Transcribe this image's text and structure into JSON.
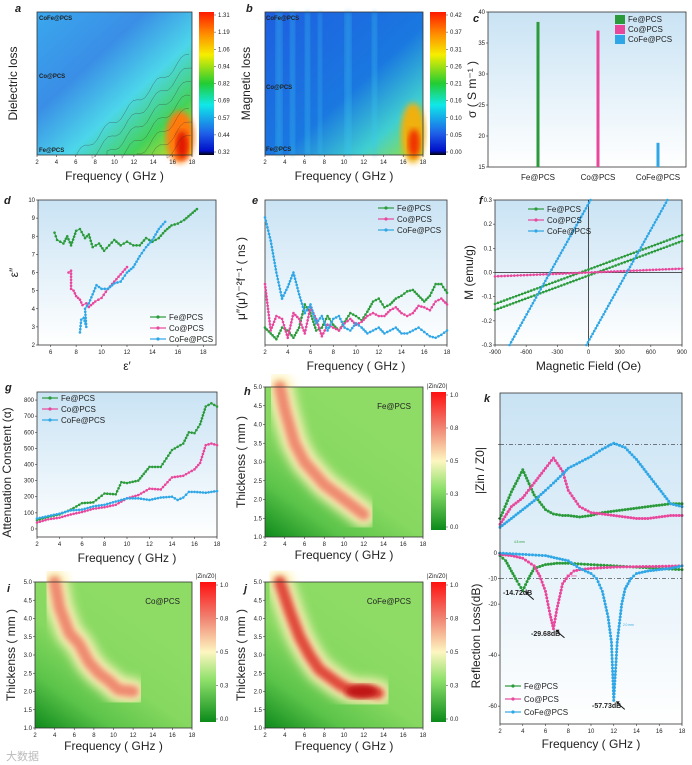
{
  "series_colors": {
    "Fe@PCS": "#2a9a3a",
    "Co@PCS": "#e8479c",
    "CoFe@PCS": "#2fa6e6"
  },
  "watermark": "大数据",
  "chart_data": [
    {
      "id": "a",
      "label": "a",
      "type": "heatmap",
      "xlabel": "Frequency ( GHz )",
      "ylabel": "Dielectric loss",
      "xlim": [
        2,
        18
      ],
      "xticks": [
        2,
        4,
        6,
        8,
        10,
        12,
        14,
        16,
        18
      ],
      "row_labels": [
        "CoFe@PCS",
        "Co@PCS",
        "Fe@PCS"
      ],
      "colorbar_ticks": [
        "1.31",
        "1.19",
        "1.06",
        "0.94",
        "0.82",
        "0.69",
        "0.57",
        "0.44",
        "0.32"
      ]
    },
    {
      "id": "b",
      "label": "b",
      "type": "heatmap",
      "xlabel": "Frequency ( GHz )",
      "ylabel": "Magnetic loss",
      "xlim": [
        2,
        18
      ],
      "xticks": [
        2,
        4,
        6,
        8,
        10,
        12,
        14,
        16,
        18
      ],
      "row_labels": [
        "CoFe@PCS",
        "Co@PCS",
        "Fe@PCS"
      ],
      "colorbar_ticks": [
        "0.42",
        "0.37",
        "0.31",
        "0.26",
        "0.21",
        "0.16",
        "0.10",
        "0.05",
        "0.00"
      ]
    },
    {
      "id": "c",
      "label": "c",
      "type": "bar",
      "ylabel": "σ ( S m⁻¹ )",
      "ylim": [
        15,
        40
      ],
      "yticks": [
        15,
        20,
        25,
        30,
        35,
        40
      ],
      "categories": [
        "Fe@PCS",
        "Co@PCS",
        "CoFe@PCS"
      ],
      "values": [
        38.4,
        37.0,
        18.9
      ],
      "legend": "top-right"
    },
    {
      "id": "d",
      "label": "d",
      "type": "line",
      "xlabel": "ε′",
      "ylabel": "ε″",
      "xlim": [
        5,
        19
      ],
      "ylim": [
        2,
        10
      ],
      "xticks": [
        6,
        8,
        10,
        12,
        14,
        16,
        18
      ],
      "yticks": [
        2,
        3,
        4,
        5,
        6,
        7,
        8,
        9,
        10
      ],
      "legend": "bottom-right",
      "series": [
        {
          "name": "Fe@PCS",
          "x": [
            6.3,
            6.5,
            7,
            7.3,
            7.6,
            8,
            8.3,
            8.7,
            9,
            9.3,
            9.8,
            10.2,
            10.6,
            11,
            11.5,
            12,
            12.5,
            13,
            13.5,
            14,
            14.5,
            15,
            15.5,
            16,
            16.5,
            17,
            17.5
          ],
          "y": [
            8.2,
            7.8,
            7.6,
            8.0,
            7.5,
            8.3,
            8.4,
            7.9,
            8.1,
            7.4,
            7.6,
            7.2,
            7.5,
            7.8,
            7.5,
            7.7,
            7.5,
            7.5,
            7.9,
            7.7,
            7.9,
            8.3,
            8.6,
            8.7,
            8.9,
            9.2,
            9.5
          ]
        },
        {
          "name": "Co@PCS",
          "x": [
            7.4,
            7.6,
            7.6,
            7.8,
            8.0,
            8.3,
            8.5,
            8.8,
            9.0,
            9.5,
            10,
            10.5,
            11,
            11.5,
            12
          ],
          "y": [
            6.0,
            6.1,
            5.1,
            5.0,
            4.7,
            4.5,
            4.2,
            4.3,
            4.1,
            4.4,
            4.6,
            5.1,
            5.5,
            5.9,
            6.3
          ]
        },
        {
          "name": "CoFe@PCS",
          "x": [
            8.3,
            8.4,
            8.6,
            8.8,
            8.7,
            9.0,
            9.3,
            9.6,
            10,
            10.5,
            11,
            11.5,
            12,
            12.5,
            13,
            13.5,
            14,
            14.5,
            15
          ],
          "y": [
            2.7,
            3.4,
            3.5,
            3.0,
            4.0,
            4.3,
            4.8,
            5.3,
            5.1,
            5.1,
            5.4,
            5.5,
            6.0,
            6.3,
            6.9,
            7.4,
            7.8,
            8.4,
            8.8
          ]
        }
      ]
    },
    {
      "id": "e",
      "label": "e",
      "type": "line",
      "xlabel": "Frequency ( GHz )",
      "ylabel": "μ″(μ′)⁻²f⁻¹ ( ns )",
      "xlim": [
        2,
        18
      ],
      "ylim": [
        0,
        1
      ],
      "xticks": [
        2,
        4,
        6,
        8,
        10,
        12,
        14,
        16,
        18
      ],
      "legend": "top-right",
      "x": [
        2,
        2.5,
        3,
        3.5,
        4,
        4.5,
        5,
        5.5,
        6,
        6.5,
        7,
        7.5,
        8,
        8.5,
        9,
        9.5,
        10,
        10.5,
        11,
        11.5,
        12,
        12.5,
        13,
        13.5,
        14,
        14.5,
        15,
        15.5,
        16,
        16.5,
        17,
        17.5,
        18
      ],
      "series": [
        {
          "name": "Fe@PCS",
          "y": [
            0.12,
            0.08,
            0.04,
            0.12,
            0.1,
            0.05,
            0.12,
            0.28,
            0.22,
            0.1,
            0.12,
            0.2,
            0.14,
            0.1,
            0.16,
            0.22,
            0.2,
            0.17,
            0.23,
            0.3,
            0.32,
            0.26,
            0.28,
            0.32,
            0.34,
            0.37,
            0.38,
            0.34,
            0.3,
            0.34,
            0.42,
            0.42,
            0.36
          ]
        },
        {
          "name": "Co@PCS",
          "y": [
            0.42,
            0.1,
            0.2,
            0.18,
            0.05,
            0.22,
            0.18,
            0.08,
            0.26,
            0.18,
            0.06,
            0.14,
            0.12,
            0.1,
            0.15,
            0.18,
            0.14,
            0.16,
            0.2,
            0.22,
            0.2,
            0.2,
            0.24,
            0.26,
            0.22,
            0.2,
            0.22,
            0.27,
            0.26,
            0.24,
            0.3,
            0.32,
            0.28
          ]
        },
        {
          "name": "CoFe@PCS",
          "y": [
            0.88,
            0.72,
            0.5,
            0.32,
            0.4,
            0.5,
            0.35,
            0.22,
            0.28,
            0.15,
            0.2,
            0.1,
            0.18,
            0.2,
            0.12,
            0.1,
            0.15,
            0.12,
            0.08,
            0.1,
            0.12,
            0.08,
            0.1,
            0.12,
            0.08,
            0.08,
            0.1,
            0.12,
            0.09,
            0.06,
            0.05,
            0.07,
            0.1
          ]
        }
      ]
    },
    {
      "id": "f",
      "label": "f",
      "type": "line",
      "xlabel": "Magnetic Field (Oe)",
      "ylabel": "M (emu/g)",
      "xlim": [
        -900,
        900
      ],
      "ylim": [
        -0.3,
        0.3
      ],
      "xticks": [
        -900,
        -600,
        -300,
        0,
        300,
        600,
        900
      ],
      "yticks": [
        "-0.3",
        "-0.2",
        "-0.1",
        "0.0",
        "0.1",
        "0.2",
        "0.3"
      ],
      "legend": "top-left",
      "series": [
        {
          "name": "Fe@PCS",
          "branches": [
            {
              "x": [
                -900,
                900
              ],
              "y": [
                -0.13,
                0.155
              ]
            },
            {
              "x": [
                -900,
                900
              ],
              "y": [
                -0.155,
                0.13
              ]
            }
          ]
        },
        {
          "name": "Co@PCS",
          "branches": [
            {
              "x": [
                -900,
                900
              ],
              "y": [
                -0.016,
                0.016
              ]
            }
          ]
        },
        {
          "name": "CoFe@PCS",
          "branches": [
            {
              "x": [
                -760,
                20
              ],
              "y": [
                -0.3,
                0.3
              ]
            },
            {
              "x": [
                -20,
                760
              ],
              "y": [
                -0.3,
                0.3
              ]
            }
          ]
        }
      ]
    },
    {
      "id": "g",
      "label": "g",
      "type": "line",
      "xlabel": "Frequency ( GHz )",
      "ylabel": "Attenuation Constent (α)",
      "xlim": [
        2,
        18
      ],
      "ylim": [
        -50,
        850
      ],
      "xticks": [
        2,
        4,
        6,
        8,
        10,
        12,
        14,
        16,
        18
      ],
      "yticks": [
        0,
        100,
        200,
        300,
        400,
        500,
        600,
        700,
        800
      ],
      "legend": "top-left",
      "series": [
        {
          "name": "Fe@PCS",
          "x": [
            2,
            3,
            4,
            5,
            6,
            7,
            8,
            9,
            9.5,
            10,
            11,
            12,
            13,
            14,
            15,
            15.5,
            16,
            16.5,
            17,
            17.5,
            18
          ],
          "y": [
            55,
            75,
            90,
            120,
            160,
            165,
            220,
            215,
            290,
            285,
            300,
            385,
            385,
            490,
            530,
            600,
            595,
            650,
            760,
            780,
            760
          ]
        },
        {
          "name": "Co@PCS",
          "x": [
            2,
            3,
            4,
            5,
            6,
            7,
            8,
            9,
            10,
            11,
            12,
            13,
            14,
            15,
            16,
            16.5,
            17,
            17.5,
            18
          ],
          "y": [
            40,
            60,
            70,
            90,
            105,
            125,
            135,
            150,
            190,
            210,
            250,
            245,
            320,
            330,
            370,
            410,
            520,
            530,
            520
          ]
        },
        {
          "name": "CoFe@PCS",
          "x": [
            2,
            3,
            4,
            5,
            6,
            7,
            8,
            9,
            10,
            11,
            12,
            13,
            14,
            14.5,
            15,
            15.5,
            16,
            17,
            18
          ],
          "y": [
            65,
            80,
            95,
            115,
            120,
            140,
            150,
            170,
            190,
            190,
            180,
            195,
            200,
            180,
            195,
            230,
            230,
            225,
            235
          ]
        }
      ]
    },
    {
      "id": "h",
      "label": "h",
      "type": "heatmap",
      "sample": "Fe@PCS",
      "xlabel": "Frequency ( GHz )",
      "ylabel": "Thickenss ( mm )",
      "xlim": [
        2,
        18
      ],
      "ylim": [
        1,
        5
      ],
      "xticks": [
        2,
        4,
        6,
        8,
        10,
        12,
        14,
        16,
        18
      ],
      "yticks": [
        "1.0",
        "1.5",
        "2.0",
        "2.5",
        "3.0",
        "3.5",
        "4.0",
        "4.5",
        "5.0"
      ],
      "colorbar_title": "|Zin/Z0|",
      "colorbar_ticks": [
        "1.0",
        "0.8",
        "0.5",
        "0.3",
        "0.0"
      ],
      "ridge": {
        "x": [
          3.5,
          4,
          5,
          6,
          7,
          8,
          9,
          10,
          11,
          12
        ],
        "y": [
          5,
          4.4,
          3.5,
          3.0,
          2.7,
          2.4,
          2.2,
          2.0,
          1.8,
          1.6
        ]
      }
    },
    {
      "id": "i",
      "label": "i",
      "type": "heatmap",
      "sample": "Co@PCS",
      "xlabel": "Frequency ( GHz )",
      "ylabel": "Thickenss ( mm )",
      "xlim": [
        2,
        18
      ],
      "ylim": [
        1,
        5
      ],
      "xticks": [
        2,
        4,
        6,
        8,
        10,
        12,
        14,
        16,
        18
      ],
      "yticks": [
        "1.0",
        "1.5",
        "2.0",
        "2.5",
        "3.0",
        "3.5",
        "4.0",
        "4.5",
        "5.0"
      ],
      "colorbar_title": "|Zin/Z0|",
      "colorbar_ticks": [
        "1.0",
        "0.8",
        "0.5",
        "0.3",
        "0.0"
      ],
      "ridge": {
        "x": [
          4,
          4.5,
          5.5,
          6.5,
          7.5,
          8.5,
          9.5,
          10.5,
          12
        ],
        "y": [
          5,
          4.3,
          3.6,
          3.3,
          2.8,
          2.5,
          2.3,
          2.05,
          2.0
        ]
      }
    },
    {
      "id": "j",
      "label": "j",
      "type": "heatmap",
      "sample": "CoFe@PCS",
      "xlabel": "Frequency ( GHz )",
      "ylabel": "Thickenss ( mm )",
      "xlim": [
        2,
        18
      ],
      "ylim": [
        1,
        5
      ],
      "xticks": [
        2,
        4,
        6,
        8,
        10,
        12,
        14,
        16,
        18
      ],
      "yticks": [
        "1.0",
        "1.5",
        "2.0",
        "2.5",
        "3.0",
        "3.5",
        "4.0",
        "4.5",
        "5.0"
      ],
      "colorbar_title": "|Zin/Z0|",
      "colorbar_ticks": [
        "1.0",
        "0.8",
        "0.5",
        "0.3",
        "0.0"
      ],
      "ridge": {
        "x": [
          3.5,
          4.5,
          5.5,
          6.5,
          7.5,
          8.5,
          9.5,
          10.5,
          11.5,
          12.5,
          13.5
        ],
        "y": [
          5,
          4.2,
          3.5,
          3.0,
          2.6,
          2.4,
          2.2,
          2.05,
          2.0,
          2.0,
          1.95
        ]
      }
    },
    {
      "id": "k_top",
      "label": "k",
      "type": "line",
      "ylabel": "|Zin / Z0|",
      "xlim": [
        2,
        18
      ],
      "ylim": [
        0.3,
        1.35
      ],
      "reference_line": 1.0,
      "x": [
        2,
        3,
        4,
        5,
        6,
        6.7,
        7.5,
        8,
        9,
        10,
        11,
        12,
        13,
        14,
        15,
        16,
        17,
        18
      ],
      "series": [
        {
          "name": "Fe@PCS",
          "y": [
            0.5,
            0.68,
            0.83,
            0.66,
            0.56,
            0.53,
            0.52,
            0.52,
            0.51,
            0.52,
            0.54,
            0.55,
            0.56,
            0.57,
            0.58,
            0.59,
            0.6,
            0.6
          ]
        },
        {
          "name": "Co@PCS",
          "y": [
            0.46,
            0.58,
            0.64,
            0.74,
            0.84,
            0.91,
            0.82,
            0.69,
            0.58,
            0.54,
            0.53,
            0.52,
            0.51,
            0.5,
            0.5,
            0.51,
            0.52,
            0.52
          ]
        },
        {
          "name": "CoFe@PCS",
          "y": [
            0.44,
            0.5,
            0.56,
            0.62,
            0.69,
            0.74,
            0.8,
            0.84,
            0.88,
            0.92,
            0.97,
            1.01,
            0.98,
            0.9,
            0.8,
            0.7,
            0.6,
            0.58
          ]
        }
      ]
    },
    {
      "id": "k_bottom",
      "type": "line",
      "xlabel": "Frequency ( GHz )",
      "ylabel": "Reflection Loss(dB)",
      "xlim": [
        2,
        18
      ],
      "ylim": [
        -67,
        2
      ],
      "xticks": [
        2,
        4,
        6,
        8,
        10,
        12,
        14,
        16,
        18
      ],
      "yticks": [
        0,
        -10,
        -20,
        -40,
        -60
      ],
      "reference_line": -10,
      "legend": "bottom-left",
      "series": [
        {
          "name": "Fe@PCS",
          "x": [
            2,
            2.5,
            3,
            3.5,
            4,
            4.5,
            5,
            6,
            7,
            8,
            10,
            12,
            14,
            16,
            18
          ],
          "y": [
            -1,
            -3,
            -7,
            -11,
            -14.72,
            -10,
            -6,
            -4.5,
            -4,
            -4,
            -4.5,
            -5,
            -5.5,
            -6,
            -6.5
          ]
        },
        {
          "name": "Co@PCS",
          "x": [
            2,
            3,
            4,
            5,
            5.5,
            6,
            6.4,
            6.7,
            7,
            7.5,
            8,
            8.5,
            9,
            10,
            12,
            14,
            16,
            18
          ],
          "y": [
            -0.5,
            -1,
            -2,
            -5,
            -9,
            -15,
            -24,
            -29.68,
            -22,
            -12,
            -9,
            -7,
            -6.5,
            -6,
            -5.5,
            -5.3,
            -5.2,
            -5
          ]
        },
        {
          "name": "CoFe@PCS",
          "x": [
            2,
            4,
            6,
            7,
            8,
            9,
            10,
            10.5,
            11,
            11.5,
            11.8,
            12,
            12.3,
            12.7,
            13,
            13.5,
            14,
            15,
            16,
            17,
            18
          ],
          "y": [
            0,
            -0.5,
            -1,
            -2,
            -3,
            -6,
            -8,
            -10,
            -15,
            -25,
            -35,
            -57.73,
            -35,
            -20,
            -14,
            -10,
            -8,
            -7,
            -6.5,
            -6,
            -5
          ]
        }
      ],
      "annotations": [
        "-14.72dB",
        "-29.68dB",
        "-57.73dB"
      ],
      "thickness_labels": [
        "4.5 mm",
        "3.5 mm",
        "2.0 mm"
      ]
    }
  ]
}
